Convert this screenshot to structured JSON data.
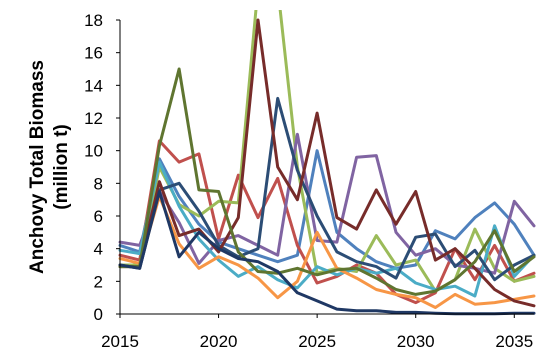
{
  "chart_data": {
    "type": "line",
    "title": "",
    "xlabel": "",
    "ylabel": "Anchovy Total Biomass (million t)",
    "ylabel_lines": [
      "Anchovy Total Biomass",
      "(million t)"
    ],
    "xlim": [
      2015,
      2036
    ],
    "ylim": [
      0,
      18
    ],
    "x_ticks": [
      2015,
      2020,
      2025,
      2030,
      2035
    ],
    "y_ticks": [
      0,
      2,
      4,
      6,
      8,
      10,
      12,
      14,
      16,
      18
    ],
    "grid": false,
    "legend": "none",
    "x": [
      2015,
      2016,
      2017,
      2018,
      2019,
      2020,
      2021,
      2022,
      2023,
      2024,
      2025,
      2026,
      2027,
      2028,
      2029,
      2030,
      2031,
      2032,
      2033,
      2034,
      2035,
      2036
    ],
    "series": [
      {
        "color": "#4f81bd",
        "values": [
          4.2,
          3.8,
          9.5,
          7.2,
          5.5,
          4.4,
          4.0,
          3.6,
          3.2,
          3.6,
          10.0,
          5.0,
          4.0,
          3.2,
          2.8,
          3.0,
          5.1,
          4.6,
          5.9,
          6.8,
          5.5,
          3.6
        ]
      },
      {
        "color": "#c0504d",
        "values": [
          3.6,
          3.3,
          10.6,
          9.3,
          9.8,
          4.6,
          8.5,
          5.9,
          8.3,
          4.2,
          1.9,
          2.3,
          3.0,
          2.5,
          1.2,
          0.7,
          1.3,
          4.0,
          2.1,
          4.2,
          2.0,
          2.5
        ]
      },
      {
        "color": "#9bbb59",
        "values": [
          3.0,
          3.0,
          9.0,
          6.7,
          6.0,
          6.9,
          6.8,
          20.0,
          20.0,
          9.0,
          2.5,
          2.8,
          2.6,
          4.8,
          3.0,
          3.3,
          1.4,
          2.1,
          5.2,
          2.8,
          2.0,
          2.3
        ]
      },
      {
        "color": "#8064a2",
        "values": [
          4.4,
          4.2,
          7.5,
          5.6,
          3.1,
          4.5,
          4.8,
          4.2,
          3.6,
          11.0,
          4.5,
          4.4,
          9.6,
          9.7,
          5.0,
          3.6,
          4.0,
          3.0,
          2.8,
          2.5,
          6.9,
          5.4
        ]
      },
      {
        "color": "#4bacc6",
        "values": [
          3.9,
          3.7,
          9.3,
          6.6,
          4.6,
          3.3,
          2.3,
          2.9,
          2.1,
          1.6,
          2.9,
          2.4,
          2.8,
          2.5,
          2.8,
          1.9,
          1.5,
          1.7,
          1.1,
          5.4,
          2.3,
          3.6
        ]
      },
      {
        "color": "#f79646",
        "values": [
          3.4,
          3.1,
          7.2,
          4.3,
          2.8,
          3.5,
          3.0,
          2.2,
          1.0,
          2.0,
          5.0,
          2.8,
          2.2,
          1.5,
          1.2,
          1.0,
          0.4,
          1.2,
          0.6,
          0.7,
          0.9,
          1.1
        ]
      },
      {
        "color": "#2c4d75",
        "values": [
          3.0,
          2.8,
          7.6,
          8.0,
          6.3,
          4.2,
          3.5,
          4.0,
          13.2,
          8.8,
          6.0,
          3.8,
          3.2,
          2.9,
          2.2,
          4.7,
          4.9,
          2.9,
          3.9,
          2.1,
          3.0,
          3.6
        ]
      },
      {
        "color": "#772c2a",
        "values": [
          2.9,
          2.9,
          8.1,
          4.8,
          5.2,
          3.8,
          5.9,
          18.0,
          9.0,
          7.0,
          12.3,
          5.9,
          5.2,
          7.6,
          5.5,
          7.5,
          3.3,
          4.0,
          2.8,
          1.5,
          0.8,
          0.5
        ]
      },
      {
        "color": "#5f7530",
        "values": [
          2.9,
          2.9,
          10.3,
          15.0,
          7.6,
          7.5,
          3.8,
          2.6,
          2.5,
          2.8,
          2.4,
          2.7,
          2.8,
          2.2,
          1.5,
          1.2,
          1.4,
          2.1,
          3.2,
          5.1,
          2.6,
          3.5
        ]
      },
      {
        "color": "#1f3864",
        "values": [
          3.0,
          2.8,
          7.5,
          3.5,
          5.0,
          4.0,
          3.4,
          3.2,
          2.6,
          1.3,
          0.8,
          0.3,
          0.2,
          0.2,
          0.1,
          0.1,
          0.05,
          0.02,
          0.02,
          0.02,
          0.05,
          0.05
        ]
      }
    ]
  }
}
